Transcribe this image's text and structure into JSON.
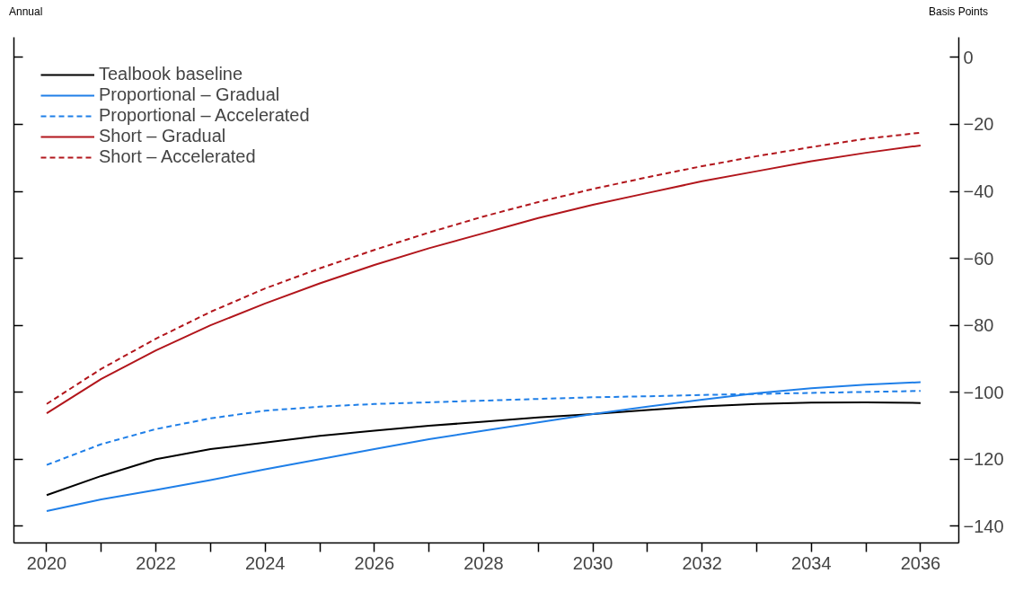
{
  "chart_data": {
    "type": "line",
    "ylabel": "Basis Points",
    "annotations": [
      "Annual"
    ],
    "x": [
      2020,
      2021,
      2022,
      2023,
      2024,
      2025,
      2026,
      2027,
      2028,
      2029,
      2030,
      2031,
      2032,
      2033,
      2034,
      2035,
      2036
    ],
    "xlim": [
      2019.4,
      2036.7
    ],
    "xticks": [
      2020,
      {
        "value": 2021,
        "label": null
      },
      2022,
      {
        "value": 2023,
        "label": null
      },
      2024,
      {
        "value": 2025,
        "label": null
      },
      2026,
      {
        "value": 2027,
        "label": null
      },
      2028,
      {
        "value": 2029,
        "label": null
      },
      2030,
      {
        "value": 2031,
        "label": null
      },
      2032,
      {
        "value": 2033,
        "label": null
      },
      2034,
      {
        "value": 2035,
        "label": null
      },
      2036
    ],
    "ylim": [
      -145,
      6
    ],
    "yticks": [
      0,
      {
        "value": -20,
        "label": "−20"
      },
      {
        "value": -40,
        "label": "−40"
      },
      {
        "value": -60,
        "label": "−60"
      },
      {
        "value": -80,
        "label": "−80"
      },
      {
        "value": -100,
        "label": "−100"
      },
      {
        "value": -120,
        "label": "−120"
      },
      {
        "value": -140,
        "label": "−140"
      }
    ],
    "grid": false,
    "legend": "top left",
    "marker": "none",
    "series": [
      {
        "name": "Tealbook baseline",
        "color": "#000000",
        "line_style": "solid",
        "values": [
          -130.7,
          -125,
          -120,
          -117,
          -115,
          -113,
          -111.5,
          -110,
          -108.8,
          -107.5,
          -106.5,
          -105.3,
          -104.2,
          -103.5,
          -103.1,
          -103,
          -103.2
        ]
      },
      {
        "name": "Proportional – Gradual",
        "color": "#1f7fe8",
        "line_style": "solid",
        "values": [
          -135.5,
          -132,
          -129.2,
          -126.2,
          -123,
          -120,
          -117,
          -114,
          -111.5,
          -109,
          -106.5,
          -104.3,
          -102.2,
          -100.3,
          -98.8,
          -97.7,
          -97
        ]
      },
      {
        "name": "Proportional – Accelerated",
        "color": "#1f7fe8",
        "line_style": "dashed",
        "values": [
          -121.7,
          -115.5,
          -111,
          -107.8,
          -105.5,
          -104.3,
          -103.5,
          -103,
          -102.5,
          -102,
          -101.5,
          -101.2,
          -100.8,
          -100.5,
          -100.2,
          -99.9,
          -99.6
        ]
      },
      {
        "name": "Short – Gradual",
        "color": "#b2161c",
        "line_style": "solid",
        "values": [
          -106.3,
          -96,
          -87.5,
          -80,
          -73.5,
          -67.5,
          -62,
          -57,
          -52.5,
          -48,
          -44,
          -40.5,
          -37,
          -34,
          -31,
          -28.5,
          -26.3
        ]
      },
      {
        "name": "Short – Accelerated",
        "color": "#b2161c",
        "line_style": "dashed",
        "values": [
          -103.5,
          -93,
          -84,
          -76,
          -69,
          -63,
          -57.5,
          -52.3,
          -47.5,
          -43.2,
          -39.3,
          -35.8,
          -32.5,
          -29.5,
          -26.8,
          -24.3,
          -22.5
        ]
      }
    ]
  }
}
